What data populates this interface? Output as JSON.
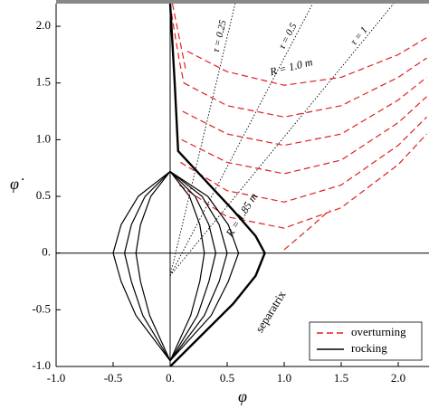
{
  "chart_data": {
    "type": "line",
    "x_label": "φ",
    "y_label": "φ̇",
    "xlim": [
      -1.0,
      2.27
    ],
    "ylim": [
      -1.0,
      2.2
    ],
    "xticks": [
      {
        "value": -1.0,
        "label": "-1.0"
      },
      -0.5,
      {
        "value": 0,
        "label": "0."
      },
      0.5,
      {
        "value": 1.0,
        "label": "1.0"
      },
      1.5,
      {
        "value": 2.0,
        "label": "2.0"
      }
    ],
    "yticks": [
      {
        "value": -1.0,
        "label": "-1.0"
      },
      -0.5,
      {
        "value": 0,
        "label": "0."
      },
      0.5,
      {
        "value": 1.0,
        "label": "1.0"
      },
      1.5,
      {
        "value": 2.0,
        "label": "2.0"
      }
    ],
    "legend": "lower right",
    "series": [
      {
        "name": "overturning",
        "color": "#e02020",
        "dashed": true,
        "curves": [
          {
            "x": [
              0.15,
              0.5,
              1.0,
              1.5,
              2.0,
              2.25
            ],
            "values": [
              1.78,
              1.6,
              1.48,
              1.55,
              1.75,
              1.9
            ]
          },
          {
            "x": [
              0.12,
              0.5,
              1.0,
              1.5,
              2.0,
              2.25
            ],
            "values": [
              1.5,
              1.3,
              1.2,
              1.3,
              1.55,
              1.72
            ]
          },
          {
            "x": [
              0.11,
              0.5,
              1.0,
              1.5,
              2.0,
              2.25
            ],
            "values": [
              1.25,
              1.05,
              0.95,
              1.05,
              1.35,
              1.55
            ]
          },
          {
            "x": [
              0.1,
              0.5,
              1.0,
              1.5,
              2.0,
              2.25
            ],
            "values": [
              1.0,
              0.8,
              0.7,
              0.82,
              1.15,
              1.38
            ]
          },
          {
            "x": [
              0.09,
              0.5,
              1.0,
              1.5,
              2.0,
              2.25
            ],
            "values": [
              0.8,
              0.55,
              0.45,
              0.6,
              0.95,
              1.2
            ]
          },
          {
            "x": [
              0.08,
              0.5,
              1.0,
              1.5,
              2.0,
              2.25
            ],
            "values": [
              0.6,
              0.32,
              0.22,
              0.4,
              0.78,
              1.05
            ]
          },
          {
            "x": [
              1.0,
              1.2,
              1.4
            ],
            "values": [
              0.03,
              0.2,
              0.38
            ]
          },
          {
            "x": [
              0.0,
              0.03,
              0.08,
              0.12
            ],
            "values": [
              2.2,
              2.0,
              1.7,
              1.5
            ]
          },
          {
            "x": [
              0.02,
              0.06,
              0.1,
              0.14
            ],
            "values": [
              2.2,
              2.0,
              1.8,
              1.6
            ]
          }
        ]
      },
      {
        "name": "rocking",
        "color": "#000000",
        "dashed": false,
        "curves": [
          {
            "x": [
              0,
              0.17,
              0.26,
              0.3,
              0.26,
              0.18,
              0,
              -0.18,
              -0.26,
              -0.3,
              -0.26,
              -0.17,
              0
            ],
            "values": [
              0.72,
              0.5,
              0.25,
              0,
              -0.25,
              -0.55,
              -0.95,
              -0.55,
              -0.25,
              0,
              0.25,
              0.5,
              0.72
            ]
          },
          {
            "x": [
              0,
              0.22,
              0.34,
              0.4,
              0.34,
              0.24,
              0,
              -0.24,
              -0.34,
              -0.4,
              -0.34,
              -0.22,
              0
            ],
            "values": [
              0.72,
              0.5,
              0.25,
              0,
              -0.25,
              -0.55,
              -0.95,
              -0.55,
              -0.25,
              0,
              0.25,
              0.5,
              0.72
            ]
          },
          {
            "x": [
              0,
              0.28,
              0.43,
              0.5,
              0.43,
              0.3,
              0,
              -0.3,
              -0.43,
              -0.5,
              -0.43,
              -0.28,
              0
            ],
            "values": [
              0.72,
              0.5,
              0.25,
              0,
              -0.25,
              -0.55,
              -0.95,
              -0.55,
              -0.25,
              0,
              0.25,
              0.5,
              0.72
            ]
          },
          {
            "x": [
              0,
              0.33,
              0.51,
              0.6,
              0.51,
              0.36,
              0
            ],
            "values": [
              0.72,
              0.5,
              0.25,
              0,
              -0.25,
              -0.55,
              -0.95
            ]
          }
        ]
      },
      {
        "name": "separatrix",
        "color": "#000000",
        "dashed": false,
        "thick": true,
        "curves": [
          {
            "x": [
              0,
              0.04,
              0.07,
              0.3,
              0.55,
              0.75,
              0.83,
              0.75,
              0.55,
              0.3,
              0
            ],
            "values": [
              2.2,
              1.5,
              0.9,
              0.65,
              0.38,
              0.15,
              0,
              -0.2,
              -0.45,
              -0.7,
              -1.0
            ]
          }
        ]
      }
    ],
    "tau_lines": [
      {
        "label": "τ = 0.25",
        "x": [
          0,
          0.57
        ],
        "values": [
          -0.2,
          2.2
        ]
      },
      {
        "label": "τ = 0.5",
        "x": [
          0,
          1.25
        ],
        "values": [
          -0.2,
          2.2
        ]
      },
      {
        "label": "τ = 1",
        "x": [
          0,
          1.96
        ],
        "values": [
          -0.2,
          2.2
        ]
      }
    ],
    "annotations": [
      "R = 1.0 m",
      "R = 1.85 m"
    ]
  }
}
